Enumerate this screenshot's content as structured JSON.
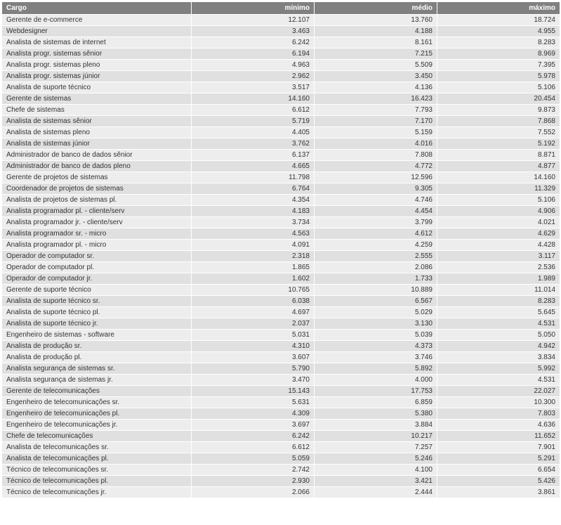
{
  "table": {
    "header_bg": "#808080",
    "header_text_color": "#ffffff",
    "row_odd_bg": "#ededed",
    "row_even_bg": "#e0e0e0",
    "text_color": "#333333",
    "font_family": "Verdana, Arial, sans-serif",
    "font_size_pt": 8,
    "columns": [
      {
        "key": "cargo",
        "label": "Cargo",
        "align": "left"
      },
      {
        "key": "minimo",
        "label": "mínimo",
        "align": "right"
      },
      {
        "key": "medio",
        "label": "médio",
        "align": "right"
      },
      {
        "key": "maximo",
        "label": "máximo",
        "align": "right"
      }
    ],
    "rows": [
      {
        "cargo": "Gerente de e-commerce",
        "minimo": "12.107",
        "medio": "13.760",
        "maximo": "18.724"
      },
      {
        "cargo": "Webdesigner",
        "minimo": "3.463",
        "medio": "4.188",
        "maximo": "4.955"
      },
      {
        "cargo": "Analista de sistemas de internet",
        "minimo": "6.242",
        "medio": "8.161",
        "maximo": "8.283"
      },
      {
        "cargo": "Analista progr. sistemas sênior",
        "minimo": "6.194",
        "medio": "7.215",
        "maximo": "8.969"
      },
      {
        "cargo": "Analista progr. sistemas pleno",
        "minimo": "4.963",
        "medio": "5.509",
        "maximo": "7.395"
      },
      {
        "cargo": "Analista progr. sistemas júnior",
        "minimo": "2.962",
        "medio": "3.450",
        "maximo": "5.978"
      },
      {
        "cargo": "Analista de suporte técnico",
        "minimo": "3.517",
        "medio": "4.136",
        "maximo": "5.106"
      },
      {
        "cargo": "Gerente de sistemas",
        "minimo": "14.160",
        "medio": "16.423",
        "maximo": "20.454"
      },
      {
        "cargo": "Chefe de sistemas",
        "minimo": "6.612",
        "medio": "7.793",
        "maximo": "9.873"
      },
      {
        "cargo": "Analista de sistemas sênior",
        "minimo": "5.719",
        "medio": "7.170",
        "maximo": "7.868"
      },
      {
        "cargo": "Analista de sistemas pleno",
        "minimo": "4.405",
        "medio": "5.159",
        "maximo": "7.552"
      },
      {
        "cargo": "Analista de sistemas júnior",
        "minimo": "3.762",
        "medio": "4.016",
        "maximo": "5.192"
      },
      {
        "cargo": "Administrador de banco de dados sênior",
        "minimo": "6.137",
        "medio": "7.808",
        "maximo": "8.871"
      },
      {
        "cargo": "Administrador de banco de dados pleno",
        "minimo": "4.665",
        "medio": "4.772",
        "maximo": "4.877"
      },
      {
        "cargo": "Gerente de projetos de sistemas",
        "minimo": "11.798",
        "medio": "12.596",
        "maximo": "14.160"
      },
      {
        "cargo": "Coordenador de projetos de sistemas",
        "minimo": "6.764",
        "medio": "9.305",
        "maximo": "11.329"
      },
      {
        "cargo": "Analista de projetos de sistemas pl.",
        "minimo": "4.354",
        "medio": "4.746",
        "maximo": "5.106"
      },
      {
        "cargo": "Analista programador pl. - cliente/serv",
        "minimo": "4.183",
        "medio": "4.454",
        "maximo": "4.906"
      },
      {
        "cargo": "Analista programador jr. - cliente/serv",
        "minimo": "3.734",
        "medio": "3.799",
        "maximo": "4.021"
      },
      {
        "cargo": "Analista programador sr. - micro",
        "minimo": "4.563",
        "medio": "4.612",
        "maximo": "4.629"
      },
      {
        "cargo": "Analista programador pl. - micro",
        "minimo": "4.091",
        "medio": "4.259",
        "maximo": "4.428"
      },
      {
        "cargo": "Operador de computador sr.",
        "minimo": "2.318",
        "medio": "2.555",
        "maximo": "3.117"
      },
      {
        "cargo": "Operador de computador pl.",
        "minimo": "1.865",
        "medio": "2.086",
        "maximo": "2.536"
      },
      {
        "cargo": "Operador de computador jr.",
        "minimo": "1.602",
        "medio": "1.733",
        "maximo": "1.989"
      },
      {
        "cargo": "Gerente de suporte técnico",
        "minimo": "10.765",
        "medio": "10.889",
        "maximo": "11.014"
      },
      {
        "cargo": "Analista de suporte técnico sr.",
        "minimo": "6.038",
        "medio": "6.567",
        "maximo": "8.283"
      },
      {
        "cargo": "Analista de suporte técnico pl.",
        "minimo": "4.697",
        "medio": "5.029",
        "maximo": "5.645"
      },
      {
        "cargo": "Analista de suporte técnico jr.",
        "minimo": "2.037",
        "medio": "3.130",
        "maximo": "4.531"
      },
      {
        "cargo": "Engenheiro de sistemas - software",
        "minimo": "5.031",
        "medio": "5.039",
        "maximo": "5.050"
      },
      {
        "cargo": "Analista de produção sr.",
        "minimo": "4.310",
        "medio": "4.373",
        "maximo": "4.942"
      },
      {
        "cargo": "Analista de produção pl.",
        "minimo": "3.607",
        "medio": "3.746",
        "maximo": "3.834"
      },
      {
        "cargo": "Analista segurança de sistemas sr.",
        "minimo": "5.790",
        "medio": "5.892",
        "maximo": "5.992"
      },
      {
        "cargo": "Analista segurança de sistemas jr.",
        "minimo": "3.470",
        "medio": "4.000",
        "maximo": "4.531"
      },
      {
        "cargo": "Gerente de telecomunicações",
        "minimo": "15.143",
        "medio": "17.753",
        "maximo": "22.027"
      },
      {
        "cargo": "Engenheiro de telecomunicações sr.",
        "minimo": "5.631",
        "medio": "6.859",
        "maximo": "10.300"
      },
      {
        "cargo": "Engenheiro de telecomunicações pl.",
        "minimo": "4.309",
        "medio": "5.380",
        "maximo": "7.803"
      },
      {
        "cargo": "Engenheiro de telecomunicações jr.",
        "minimo": "3.697",
        "medio": "3.884",
        "maximo": "4.636"
      },
      {
        "cargo": "Chefe de telecomunicações",
        "minimo": "6.242",
        "medio": "10.217",
        "maximo": "11.652"
      },
      {
        "cargo": "Analista de telecomunicações sr.",
        "minimo": "6.612",
        "medio": "7.257",
        "maximo": "7.901"
      },
      {
        "cargo": "Analista de telecomunicações pl.",
        "minimo": "5.059",
        "medio": "5.246",
        "maximo": "5.291"
      },
      {
        "cargo": "Técnico de telecomunicações sr.",
        "minimo": "2.742",
        "medio": "4.100",
        "maximo": "6.654"
      },
      {
        "cargo": "Técnico de telecomunicações pl.",
        "minimo": "2.930",
        "medio": "3.421",
        "maximo": "5.426"
      },
      {
        "cargo": "Técnico de telecomunicações jr.",
        "minimo": "2.066",
        "medio": "2.444",
        "maximo": "3.861"
      }
    ]
  }
}
